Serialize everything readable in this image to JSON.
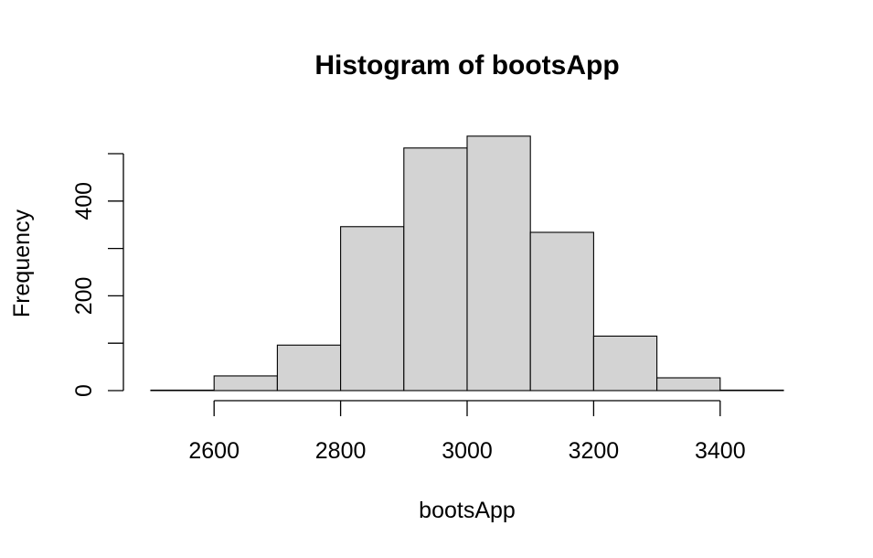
{
  "chart_data": {
    "type": "bar",
    "title": "Histogram of bootsApp",
    "xlabel": "bootsApp",
    "ylabel": "Frequency",
    "bins": [
      {
        "from": 2500,
        "to": 2600,
        "count": 1
      },
      {
        "from": 2600,
        "to": 2700,
        "count": 31
      },
      {
        "from": 2700,
        "to": 2800,
        "count": 96
      },
      {
        "from": 2800,
        "to": 2900,
        "count": 346
      },
      {
        "from": 2900,
        "to": 3000,
        "count": 512
      },
      {
        "from": 3000,
        "to": 3100,
        "count": 537
      },
      {
        "from": 3100,
        "to": 3200,
        "count": 334
      },
      {
        "from": 3200,
        "to": 3300,
        "count": 115
      },
      {
        "from": 3300,
        "to": 3400,
        "count": 27
      },
      {
        "from": 3400,
        "to": 3500,
        "count": 1
      }
    ],
    "xlim": [
      2500,
      3500
    ],
    "ylim": [
      0,
      537
    ],
    "x_ticks": [
      2600,
      2800,
      3000,
      3200,
      3400
    ],
    "y_ticks": [
      0,
      100,
      200,
      300,
      400,
      500
    ],
    "y_tick_labels": [
      0,
      200,
      400
    ],
    "bar_color": "#d3d3d3",
    "grid": false
  }
}
